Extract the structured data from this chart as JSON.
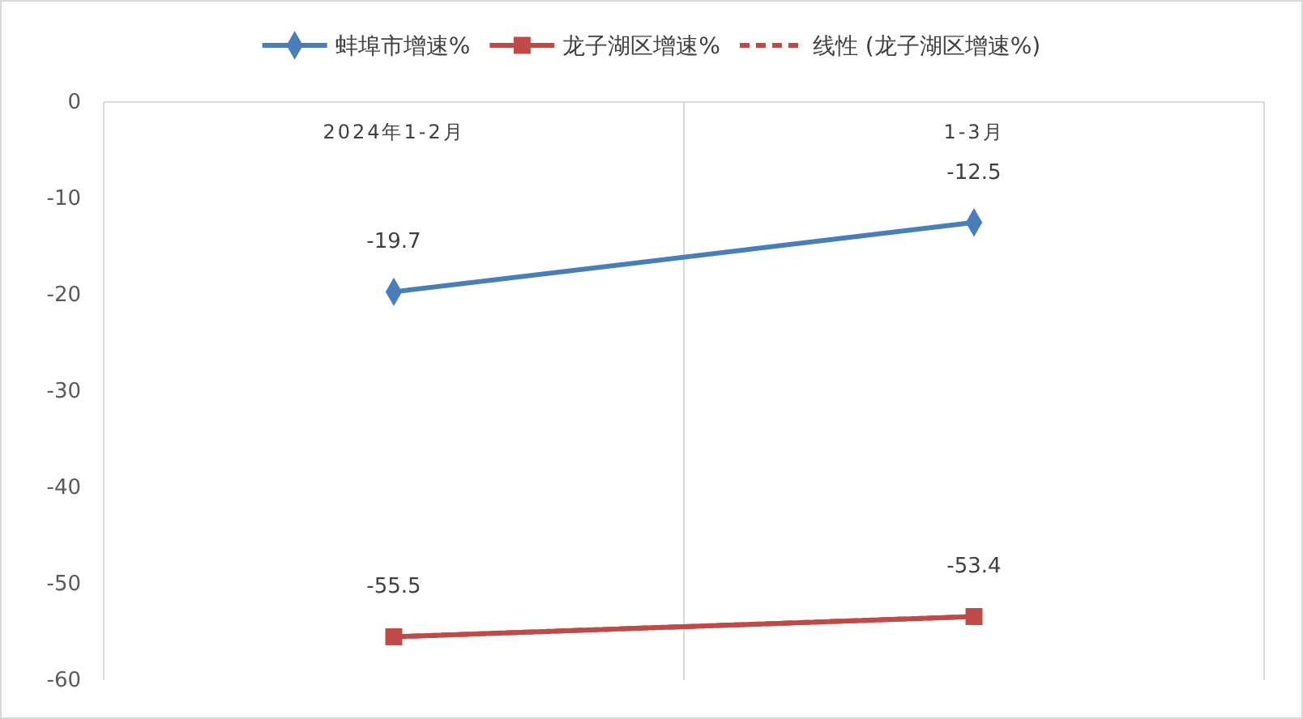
{
  "chart_data": {
    "type": "line",
    "categories": [
      "2024年1-2月",
      "1-3月"
    ],
    "ylim": [
      -60,
      0
    ],
    "yticks": [
      -60,
      -50,
      -40,
      -30,
      -20,
      -10,
      0
    ],
    "grid": "x",
    "legend": "top",
    "series": [
      {
        "name": "蚌埠市增速%",
        "color": "#4a7ebb",
        "values": [
          -19.7,
          -12.5
        ],
        "value_labels": [
          "-19.7",
          "-12.5"
        ],
        "marker": "diamond",
        "line_style": "solid"
      },
      {
        "name": "龙子湖区增速%",
        "color": "#be4b48",
        "values": [
          -55.5,
          -53.4
        ],
        "value_labels": [
          "-55.5",
          "-53.4"
        ],
        "marker": "square",
        "line_style": "solid"
      },
      {
        "name": "线性 (龙子湖区增速%)",
        "color": "#be4b48",
        "values": [
          -55.5,
          -53.4
        ],
        "marker": "none",
        "line_style": "dashed"
      }
    ]
  }
}
